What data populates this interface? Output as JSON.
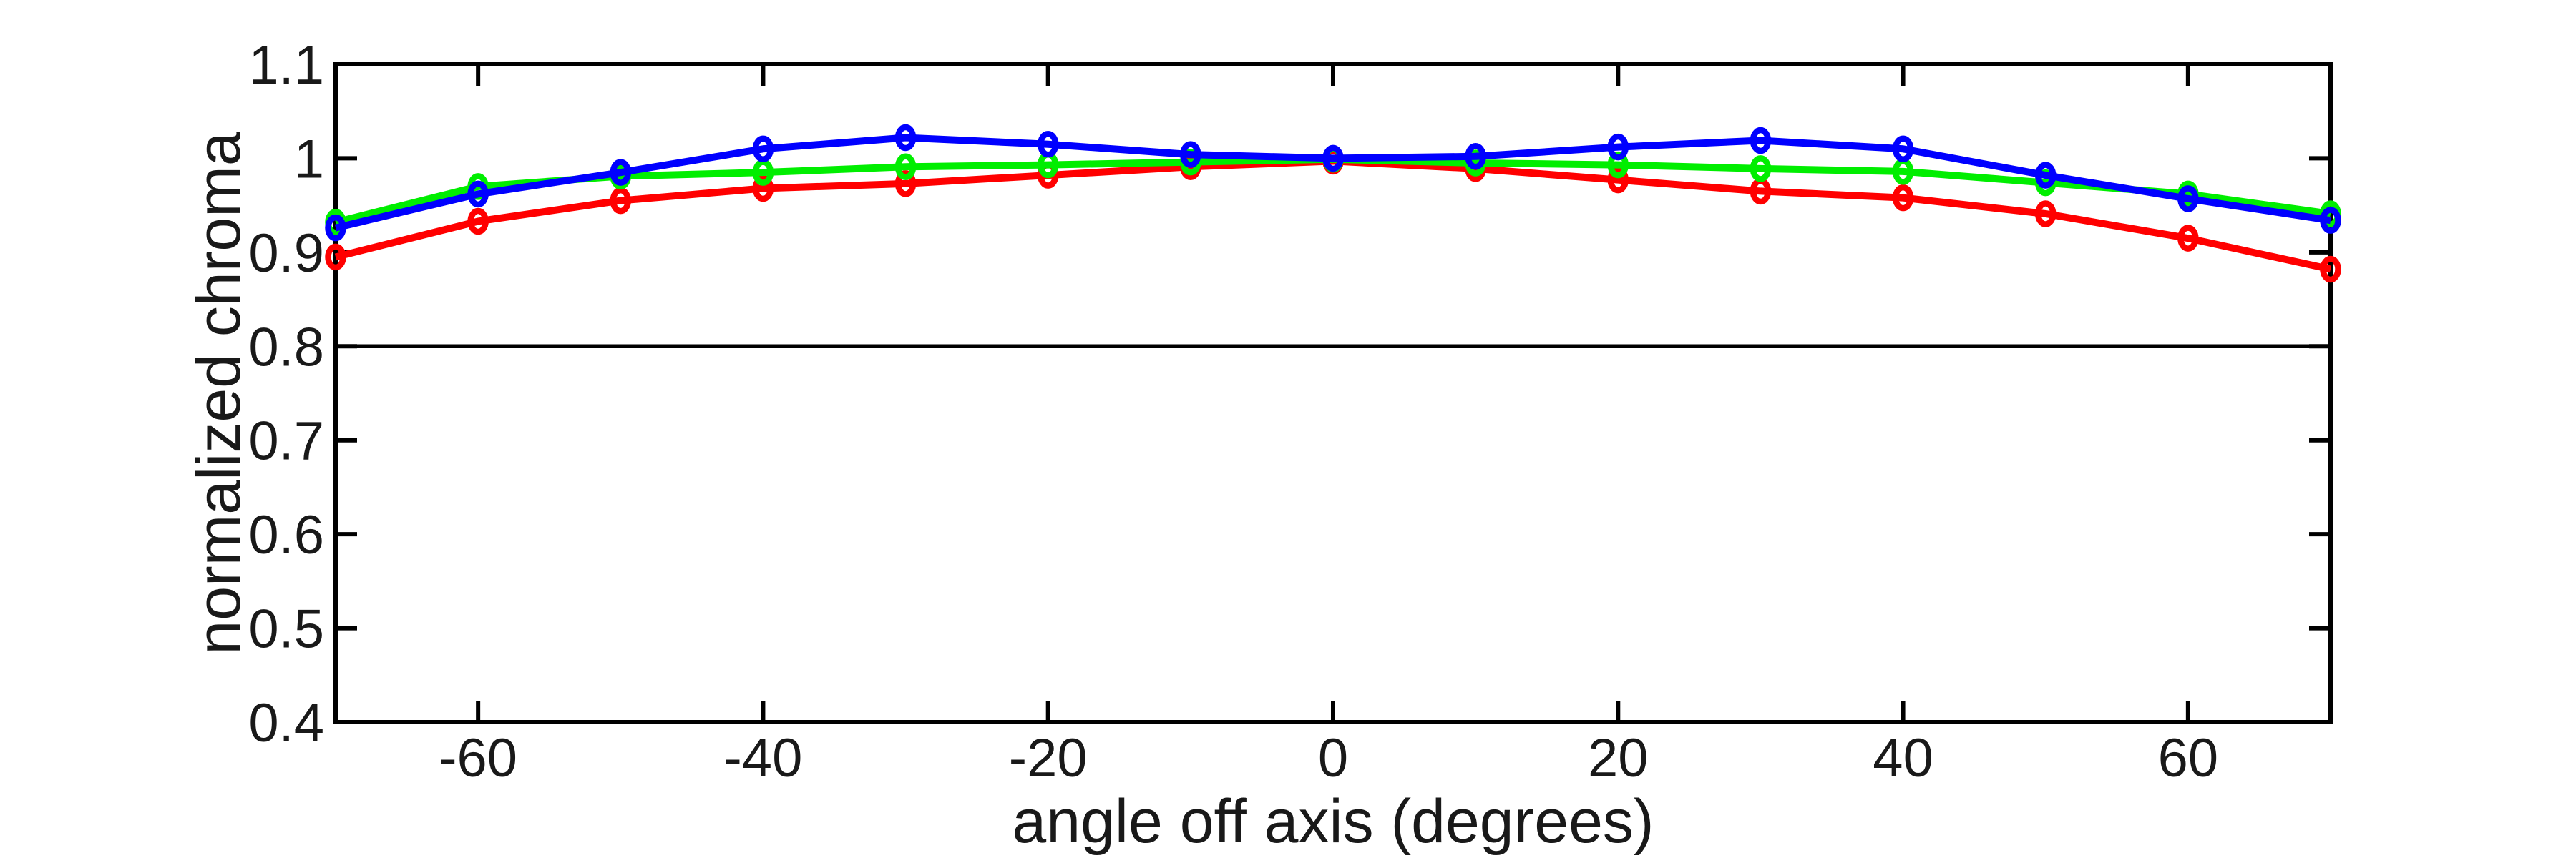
{
  "figure": {
    "background": "#ffffff",
    "text_color": "#191919",
    "axis_color": "#000000"
  },
  "chart_data": {
    "type": "line",
    "title": "",
    "xlabel": "angle off axis (degrees)",
    "ylabel": "normalized chroma",
    "xlim": [
      -70,
      70
    ],
    "ylim": [
      0.4,
      1.1
    ],
    "grid": false,
    "legend": null,
    "box": true,
    "x_ticks": [
      {
        "value": -60,
        "label": "-60"
      },
      {
        "value": -40,
        "label": "-40"
      },
      {
        "value": -20,
        "label": "-20"
      },
      {
        "value": 0,
        "label": "0"
      },
      {
        "value": 20,
        "label": "20"
      },
      {
        "value": 40,
        "label": "40"
      },
      {
        "value": 60,
        "label": "60"
      }
    ],
    "y_ticks": [
      {
        "value": 0.4,
        "label": "0.4"
      },
      {
        "value": 0.5,
        "label": "0.5"
      },
      {
        "value": 0.6,
        "label": "0.6"
      },
      {
        "value": 0.7,
        "label": "0.7"
      },
      {
        "value": 0.8,
        "label": "0.8"
      },
      {
        "value": 0.9,
        "label": "0.9"
      },
      {
        "value": 1.0,
        "label": "1"
      },
      {
        "value": 1.1,
        "label": "1.1"
      }
    ],
    "reference_line": {
      "y": 0.8,
      "color": "#000000"
    },
    "marker": "o",
    "x": [
      -70,
      -60,
      -50,
      -40,
      -30,
      -20,
      -10,
      0,
      10,
      20,
      30,
      40,
      50,
      60,
      70
    ],
    "series": [
      {
        "name": "red",
        "color": "#ff0000",
        "values": [
          0.895,
          0.933,
          0.955,
          0.968,
          0.973,
          0.982,
          0.991,
          0.997,
          0.989,
          0.977,
          0.965,
          0.958,
          0.941,
          0.915,
          0.882
        ]
      },
      {
        "name": "green",
        "color": "#00ee00",
        "values": [
          0.932,
          0.97,
          0.981,
          0.985,
          0.991,
          0.993,
          0.996,
          0.999,
          0.995,
          0.993,
          0.989,
          0.986,
          0.974,
          0.962,
          0.941
        ]
      },
      {
        "name": "blue",
        "color": "#0000ff",
        "values": [
          0.926,
          0.962,
          0.985,
          1.01,
          1.022,
          1.015,
          1.004,
          1.0,
          1.002,
          1.012,
          1.019,
          1.01,
          0.982,
          0.957,
          0.934
        ]
      }
    ]
  }
}
